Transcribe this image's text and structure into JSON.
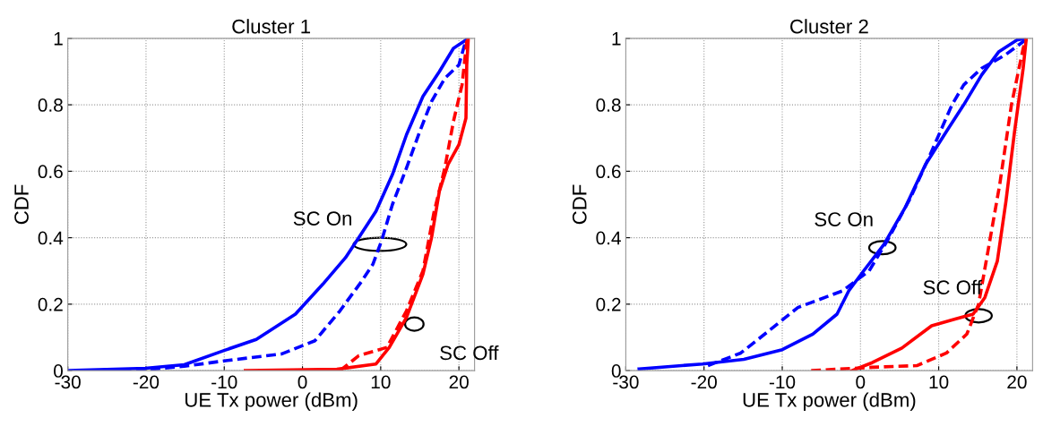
{
  "chart_data": [
    {
      "type": "line",
      "title": "Cluster 1",
      "xlabel": "UE Tx power (dBm)",
      "ylabel": "CDF",
      "xlim": [
        -30,
        22
      ],
      "ylim": [
        0,
        1
      ],
      "xticks": [
        -30,
        -20,
        -10,
        0,
        10,
        20
      ],
      "yticks": [
        0,
        0.2,
        0.4,
        0.6,
        0.8,
        1
      ],
      "grid": true,
      "series": [
        {
          "color": "#0000ff",
          "line_style": "solid",
          "x": [
            -30,
            -20.1,
            -15.1,
            -10.1,
            -5.9,
            -0.9,
            2.6,
            5.5,
            7.2,
            9.4,
            11.5,
            13.3,
            15.4,
            17.5,
            19.3,
            20.9,
            21
          ],
          "values": [
            0,
            0.007,
            0.018,
            0.06,
            0.094,
            0.17,
            0.26,
            0.34,
            0.4,
            0.48,
            0.59,
            0.71,
            0.825,
            0.9,
            0.97,
            0.995,
            1
          ]
        },
        {
          "color": "#0000ff",
          "line_style": "dashed",
          "x": [
            -25,
            -20.4,
            -15.1,
            -9.8,
            -2.7,
            1.6,
            4.8,
            7.6,
            9.0,
            10.1,
            11.5,
            13.3,
            15.0,
            16.5,
            18.2,
            20,
            20.9
          ],
          "values": [
            0,
            0.002,
            0.013,
            0.03,
            0.05,
            0.09,
            0.18,
            0.27,
            0.32,
            0.39,
            0.5,
            0.61,
            0.72,
            0.81,
            0.88,
            0.92,
            0.995
          ]
        },
        {
          "color": "#ff0000",
          "line_style": "solid",
          "x": [
            -7.3,
            4.4,
            9.4,
            11.1,
            13.3,
            15.4,
            16.5,
            17.5,
            18.6,
            20,
            20.9,
            21,
            21.2
          ],
          "values": [
            0,
            0.004,
            0.02,
            0.07,
            0.16,
            0.29,
            0.4,
            0.54,
            0.62,
            0.68,
            0.76,
            0.92,
            1
          ]
        },
        {
          "color": "#ff0000",
          "line_style": "dashed",
          "x": [
            4.8,
            7.2,
            10.8,
            13.3,
            15.4,
            16.8,
            18.2,
            19.3,
            20.4,
            21,
            21.2
          ],
          "values": [
            0,
            0.045,
            0.07,
            0.18,
            0.3,
            0.475,
            0.61,
            0.75,
            0.86,
            0.99,
            1
          ]
        }
      ],
      "annotations": [
        {
          "text": "SC On",
          "x": 9.9,
          "y": 0.38
        },
        {
          "text": "SC Off",
          "x": 14.3,
          "y": 0.14
        }
      ]
    },
    {
      "type": "line",
      "title": "Cluster 2",
      "xlabel": "UE Tx power (dBm)",
      "ylabel": "CDF",
      "xlim": [
        -30,
        22
      ],
      "ylim": [
        0,
        1
      ],
      "xticks": [
        -30,
        -20,
        -10,
        0,
        10,
        20
      ],
      "yticks": [
        0,
        0.2,
        0.4,
        0.6,
        0.8,
        1
      ],
      "grid": true,
      "series": [
        {
          "color": "#0000ff",
          "line_style": "solid",
          "x": [
            -28.3,
            -20.2,
            -14.9,
            -10,
            -6.1,
            -3,
            -1.5,
            0.4,
            3,
            5.7,
            8.3,
            11,
            13.2,
            15.5,
            17.7,
            20,
            21
          ],
          "values": [
            0.005,
            0.02,
            0.034,
            0.063,
            0.11,
            0.17,
            0.24,
            0.3,
            0.38,
            0.49,
            0.62,
            0.72,
            0.8,
            0.89,
            0.96,
            0.995,
            1
          ]
        },
        {
          "color": "#0000ff",
          "line_style": "dashed",
          "x": [
            -19.5,
            -15.3,
            -11.7,
            -8,
            -2.3,
            1.1,
            3.4,
            6.4,
            9.1,
            11.7,
            13.2,
            15.5,
            18.5,
            20.8,
            21
          ],
          "values": [
            0.015,
            0.053,
            0.12,
            0.19,
            0.24,
            0.3,
            0.39,
            0.52,
            0.66,
            0.8,
            0.86,
            0.91,
            0.95,
            0.99,
            1
          ]
        },
        {
          "color": "#ff0000",
          "line_style": "solid",
          "x": [
            -1.1,
            1.5,
            5.3,
            9.1,
            12.1,
            14.4,
            15.9,
            17.5,
            18.6,
            19.7,
            20.8,
            21.2
          ],
          "values": [
            0,
            0.024,
            0.068,
            0.135,
            0.155,
            0.17,
            0.22,
            0.33,
            0.51,
            0.72,
            0.91,
            1
          ]
        },
        {
          "color": "#ff0000",
          "line_style": "dashed",
          "x": [
            -6.3,
            1.5,
            7.2,
            11,
            13.6,
            15.1,
            16.3,
            17.8,
            19.3,
            20.8,
            21.2
          ],
          "values": [
            0,
            0.01,
            0.015,
            0.053,
            0.11,
            0.2,
            0.36,
            0.56,
            0.8,
            0.97,
            1
          ]
        }
      ],
      "annotations": [
        {
          "text": "SC On",
          "x": 2.8,
          "y": 0.37
        },
        {
          "text": "SC Off",
          "x": 15.1,
          "y": 0.165
        }
      ]
    }
  ]
}
